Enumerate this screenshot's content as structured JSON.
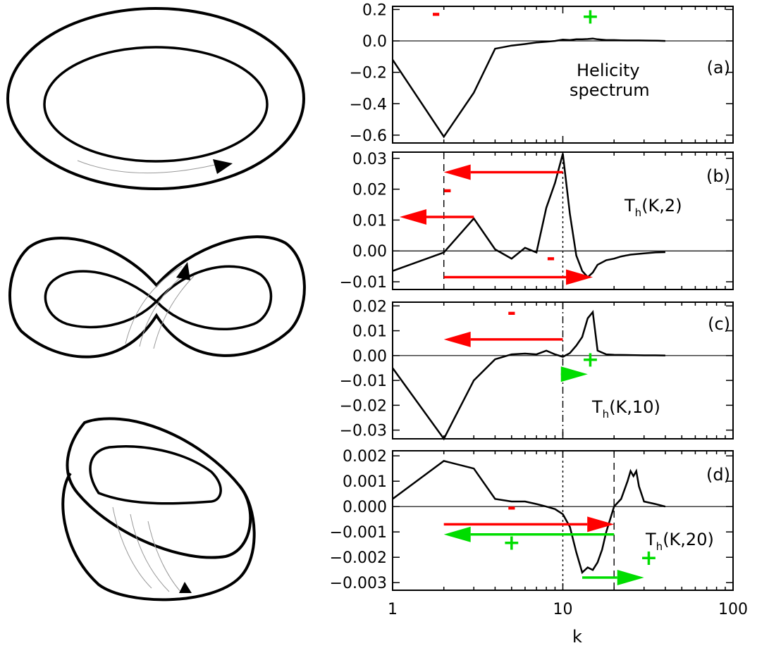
{
  "x_axis": {
    "label": "k",
    "scale": "log",
    "range": [
      1,
      100
    ],
    "tick_labels": [
      {
        "value": 1,
        "label": "1"
      },
      {
        "value": 10,
        "label": "10"
      },
      {
        "value": 100,
        "label": "100"
      }
    ]
  },
  "ribbons": [
    {
      "name": "untwisted-torus-ribbon"
    },
    {
      "name": "figure-eight-ribbon"
    },
    {
      "name": "double-loop-ribbon"
    }
  ],
  "chart_data": [
    {
      "type": "line",
      "panel": "(a)",
      "annotation": [
        "Helicity",
        "spectrum"
      ],
      "ylim": [
        -0.65,
        0.22
      ],
      "yticks": [
        {
          "value": 0.2,
          "label": "0.2"
        },
        {
          "value": 0.0,
          "label": "0.0"
        },
        {
          "value": -0.2,
          "label": "-0.2"
        },
        {
          "value": -0.4,
          "label": "-0.4"
        },
        {
          "value": -0.6,
          "label": "-0.6"
        }
      ],
      "x": [
        1,
        2,
        3,
        4,
        5,
        6,
        7,
        8,
        9,
        10,
        11,
        12,
        13,
        14,
        15,
        16,
        18,
        20,
        22,
        25,
        28,
        32,
        36,
        40
      ],
      "y": [
        -0.12,
        -0.61,
        -0.33,
        -0.05,
        -0.03,
        -0.02,
        -0.01,
        -0.005,
        0.0,
        0.008,
        0.005,
        0.01,
        0.01,
        0.012,
        0.015,
        0.01,
        0.005,
        0.005,
        0.004,
        0.003,
        0.003,
        0.002,
        0.001,
        0.0
      ],
      "vlines": [],
      "arrows": [],
      "signs": [
        {
          "text": "-",
          "x": 1.8,
          "y": 0.13,
          "color": "#ff0000"
        },
        {
          "text": "+",
          "x": 14.5,
          "y": 0.11,
          "color": "#00dd00"
        }
      ]
    },
    {
      "type": "line",
      "panel": "(b)",
      "annotation_main": "T",
      "annotation_sub": "h",
      "annotation_args": "(K,2)",
      "ylim": [
        -0.0125,
        0.032
      ],
      "yticks": [
        {
          "value": 0.03,
          "label": "0.03"
        },
        {
          "value": 0.02,
          "label": "0.02"
        },
        {
          "value": 0.01,
          "label": "0.01"
        },
        {
          "value": 0.0,
          "label": "0.00"
        },
        {
          "value": -0.01,
          "label": "-0.01"
        }
      ],
      "x": [
        1,
        2,
        3,
        4,
        5,
        6,
        7,
        8,
        9,
        10,
        11,
        12,
        13,
        14,
        15,
        16,
        18,
        20,
        22,
        25,
        30,
        35,
        40
      ],
      "y": [
        -0.0065,
        -0.0005,
        0.0105,
        0.0005,
        -0.0025,
        0.001,
        -0.0005,
        0.014,
        0.022,
        0.0315,
        0.012,
        -0.0015,
        -0.0065,
        -0.0085,
        -0.007,
        -0.0045,
        -0.003,
        -0.0025,
        -0.0018,
        -0.0012,
        -0.0008,
        -0.0005,
        -0.0004
      ],
      "vlines": [
        {
          "x": 2,
          "style": "dashed"
        },
        {
          "x": 10,
          "style": "dotted"
        }
      ],
      "arrows": [
        {
          "x1": 10,
          "x2": 2,
          "y": 0.0255,
          "color": "#ff0000"
        },
        {
          "x1": 3,
          "x2": 1.1,
          "y": 0.011,
          "color": "#ff0000"
        },
        {
          "x1": 2,
          "x2": 15,
          "y": -0.0085,
          "color": "#ff0000"
        }
      ],
      "signs": [
        {
          "text": "-",
          "x": 2.1,
          "y": 0.0175,
          "color": "#ff0000"
        },
        {
          "text": "-",
          "x": 8.5,
          "y": -0.0045,
          "color": "#ff0000"
        }
      ]
    },
    {
      "type": "line",
      "panel": "(c)",
      "annotation_main": "T",
      "annotation_sub": "h",
      "annotation_args": "(K,10)",
      "ylim": [
        -0.0335,
        0.0215
      ],
      "yticks": [
        {
          "value": 0.02,
          "label": "0.02"
        },
        {
          "value": 0.01,
          "label": "0.01"
        },
        {
          "value": 0.0,
          "label": "0.00"
        },
        {
          "value": -0.01,
          "label": "-0.01"
        },
        {
          "value": -0.02,
          "label": "-0.02"
        },
        {
          "value": -0.03,
          "label": "-0.03"
        }
      ],
      "x": [
        1,
        2,
        3,
        4,
        5,
        6,
        7,
        8,
        9,
        10,
        11,
        12,
        13,
        14,
        15,
        16,
        18,
        20,
        25,
        30,
        35,
        40
      ],
      "y": [
        -0.005,
        -0.0335,
        -0.01,
        -0.0015,
        0.0005,
        0.0008,
        0.0005,
        0.002,
        0.0005,
        -0.0005,
        0.001,
        0.004,
        0.0075,
        0.015,
        0.0175,
        0.002,
        0.0005,
        0.0003,
        0.0002,
        0.0001,
        0.0001,
        0.0
      ],
      "vlines": [
        {
          "x": 10,
          "style": "dashdot"
        }
      ],
      "arrows": [
        {
          "x1": 10,
          "x2": 2,
          "y": 0.0065,
          "color": "#ff0000"
        },
        {
          "x1": 10,
          "x2": 14,
          "y": -0.0075,
          "color": "#00dd00"
        }
      ],
      "signs": [
        {
          "text": "-",
          "x": 5,
          "y": 0.0145,
          "color": "#ff0000"
        },
        {
          "text": "+",
          "x": 14.5,
          "y": -0.0045,
          "color": "#00dd00"
        }
      ]
    },
    {
      "type": "line",
      "panel": "(d)",
      "annotation_main": "T",
      "annotation_sub": "h",
      "annotation_args": "(K,20)",
      "ylim": [
        -0.0033,
        0.0022
      ],
      "yticks": [
        {
          "value": 0.002,
          "label": "0.002"
        },
        {
          "value": 0.001,
          "label": "0.001"
        },
        {
          "value": 0.0,
          "label": "0.000"
        },
        {
          "value": -0.001,
          "label": "-0.001"
        },
        {
          "value": -0.002,
          "label": "-0.002"
        },
        {
          "value": -0.003,
          "label": "-0.003"
        }
      ],
      "x": [
        1,
        2,
        3,
        4,
        5,
        6,
        7,
        8,
        9,
        10,
        11,
        12,
        13,
        14,
        15,
        16,
        17,
        18,
        20,
        22,
        24,
        25,
        26,
        27,
        28,
        30,
        35,
        40
      ],
      "y": [
        0.0003,
        0.0018,
        0.0015,
        0.0003,
        0.0002,
        0.0002,
        0.0001,
        0.0,
        -0.0001,
        -0.0003,
        -0.0008,
        -0.0018,
        -0.0026,
        -0.0024,
        -0.0025,
        -0.0022,
        -0.0017,
        -0.001,
        0.0,
        0.0003,
        0.001,
        0.0014,
        0.0012,
        0.0014,
        0.0008,
        0.0002,
        0.0001,
        0.0
      ],
      "vlines": [
        {
          "x": 10,
          "style": "dotted"
        },
        {
          "x": 20,
          "style": "dashed"
        }
      ],
      "arrows": [
        {
          "x1": 2,
          "x2": 20,
          "y": -0.0007,
          "color": "#ff0000"
        },
        {
          "x1": 20,
          "x2": 2,
          "y": -0.0011,
          "color": "#00dd00"
        },
        {
          "x1": 13,
          "x2": 30,
          "y": -0.0028,
          "color": "#00dd00"
        }
      ],
      "signs": [
        {
          "text": "-",
          "x": 5,
          "y": -0.0003,
          "color": "#ff0000"
        },
        {
          "text": "+",
          "x": 5,
          "y": -0.0017,
          "color": "#00dd00"
        },
        {
          "text": "+",
          "x": 32,
          "y": -0.0023,
          "color": "#00dd00"
        }
      ]
    }
  ]
}
